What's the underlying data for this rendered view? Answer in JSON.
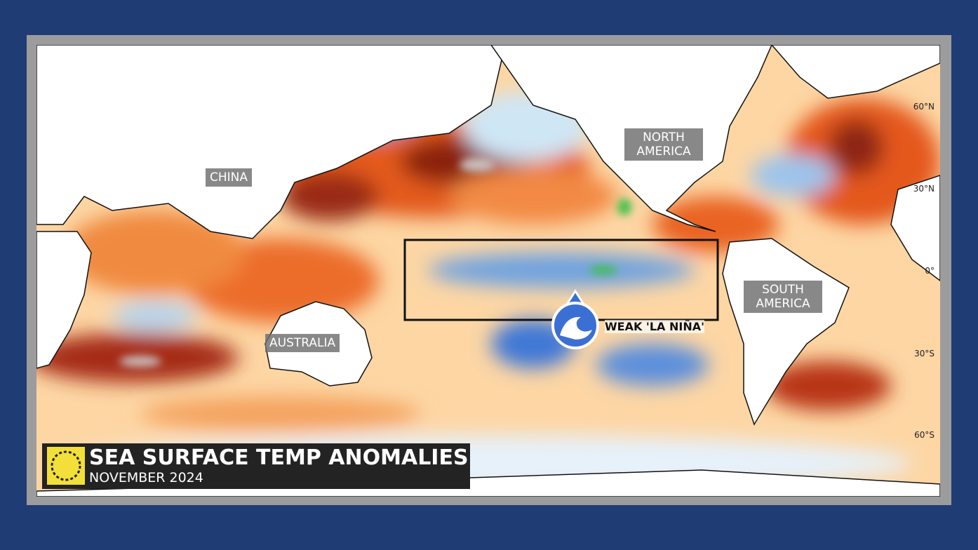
{
  "map": {
    "title": "SEA SURFACE TEMP ANOMALIES",
    "subtitle": "NOVEMBER 2024",
    "regions": [
      "CHINA",
      "NORTH AMERICA",
      "SOUTH AMERICA",
      "AUSTRALIA"
    ],
    "callout": "WEAK 'LA NIÑA'",
    "latitudes": [
      "60°N",
      "30°N",
      "0°",
      "30°S",
      "60°S"
    ]
  }
}
